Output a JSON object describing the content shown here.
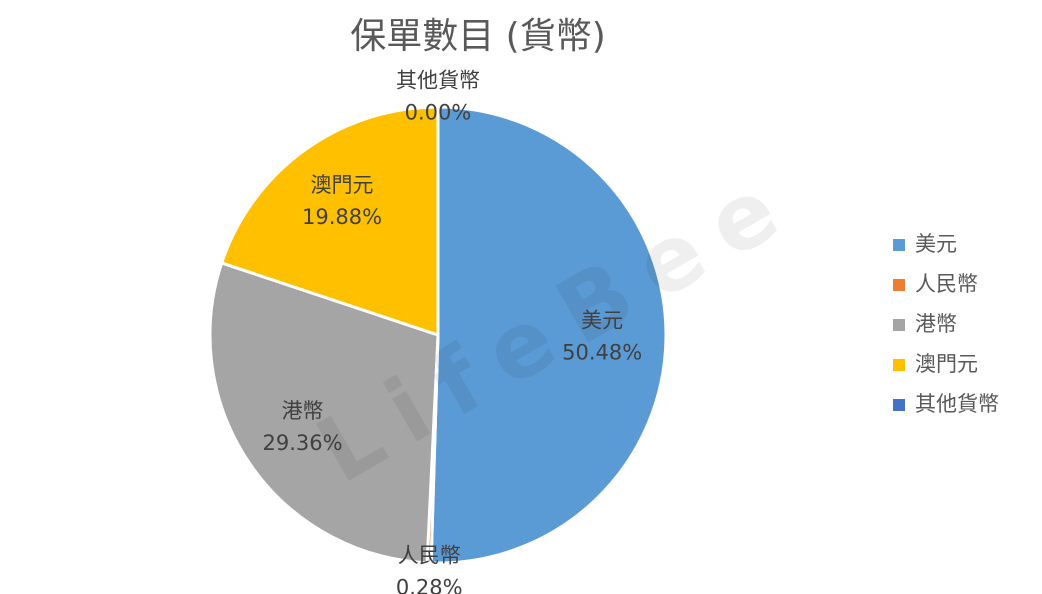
{
  "chart_data": {
    "type": "pie",
    "title": "保單數目 (貨幣)",
    "watermark": "LifeBee",
    "categories": [
      "美元",
      "人民幣",
      "港幣",
      "澳門元",
      "其他貨幣"
    ],
    "values": [
      50.48,
      0.28,
      29.36,
      19.88,
      0.0
    ],
    "value_labels": [
      "50.48%",
      "0.28%",
      "29.36%",
      "19.88%",
      "0.00%"
    ],
    "colors": [
      "#5b9bd5",
      "#ed7d31",
      "#a5a5a5",
      "#ffc000",
      "#4472c4"
    ],
    "legend": "right"
  }
}
